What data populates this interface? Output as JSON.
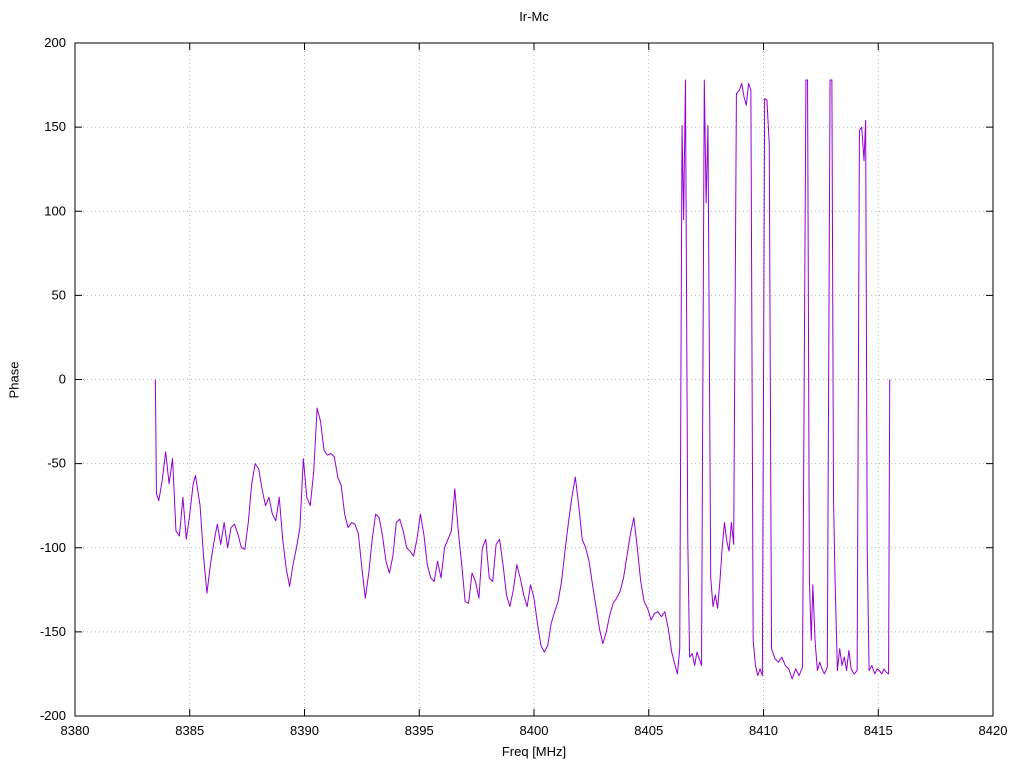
{
  "chart": {
    "title": "Ir-Mc",
    "xlabel": "Freq [MHz]",
    "ylabel": "Phase"
  },
  "chart_data": {
    "type": "line",
    "title": "Ir-Mc",
    "xlabel": "Freq [MHz]",
    "ylabel": "Phase",
    "xlim": [
      8380,
      8420
    ],
    "ylim": [
      -200,
      200
    ],
    "xticks": [
      8380,
      8385,
      8390,
      8395,
      8400,
      8405,
      8410,
      8415,
      8420
    ],
    "yticks": [
      -200,
      -150,
      -100,
      -50,
      0,
      50,
      100,
      150,
      200
    ],
    "grid": true,
    "legend": "none",
    "line_color": "#9400d3",
    "grid_color": "#b8b8b8",
    "background": "#ffffff",
    "series": [
      {
        "name": "Phase",
        "points": [
          [
            8383.5,
            0
          ],
          [
            8383.55,
            -68
          ],
          [
            8383.65,
            -72
          ],
          [
            8383.8,
            -60
          ],
          [
            8383.95,
            -43
          ],
          [
            8384.1,
            -62
          ],
          [
            8384.25,
            -47
          ],
          [
            8384.4,
            -90
          ],
          [
            8384.55,
            -93
          ],
          [
            8384.7,
            -70
          ],
          [
            8384.85,
            -95
          ],
          [
            8385.0,
            -80
          ],
          [
            8385.15,
            -62
          ],
          [
            8385.25,
            -57
          ],
          [
            8385.45,
            -75
          ],
          [
            8385.6,
            -105
          ],
          [
            8385.75,
            -127
          ],
          [
            8385.9,
            -110
          ],
          [
            8386.05,
            -97
          ],
          [
            8386.2,
            -86
          ],
          [
            8386.35,
            -98
          ],
          [
            8386.5,
            -85
          ],
          [
            8386.65,
            -100
          ],
          [
            8386.8,
            -88
          ],
          [
            8386.95,
            -86
          ],
          [
            8387.1,
            -92
          ],
          [
            8387.25,
            -100
          ],
          [
            8387.4,
            -101
          ],
          [
            8387.55,
            -85
          ],
          [
            8387.7,
            -62
          ],
          [
            8387.85,
            -50
          ],
          [
            8388.0,
            -53
          ],
          [
            8388.15,
            -65
          ],
          [
            8388.3,
            -75
          ],
          [
            8388.45,
            -70
          ],
          [
            8388.6,
            -80
          ],
          [
            8388.75,
            -84
          ],
          [
            8388.9,
            -70
          ],
          [
            8389.05,
            -95
          ],
          [
            8389.2,
            -112
          ],
          [
            8389.35,
            -123
          ],
          [
            8389.5,
            -110
          ],
          [
            8389.65,
            -100
          ],
          [
            8389.8,
            -88
          ],
          [
            8389.95,
            -47
          ],
          [
            8390.1,
            -70
          ],
          [
            8390.25,
            -75
          ],
          [
            8390.4,
            -55
          ],
          [
            8390.55,
            -17
          ],
          [
            8390.7,
            -25
          ],
          [
            8390.85,
            -42
          ],
          [
            8391.0,
            -45
          ],
          [
            8391.15,
            -44
          ],
          [
            8391.3,
            -46
          ],
          [
            8391.45,
            -58
          ],
          [
            8391.6,
            -63
          ],
          [
            8391.75,
            -80
          ],
          [
            8391.9,
            -88
          ],
          [
            8392.05,
            -85
          ],
          [
            8392.2,
            -86
          ],
          [
            8392.35,
            -92
          ],
          [
            8392.5,
            -112
          ],
          [
            8392.65,
            -130
          ],
          [
            8392.8,
            -115
          ],
          [
            8392.95,
            -95
          ],
          [
            8393.1,
            -80
          ],
          [
            8393.25,
            -82
          ],
          [
            8393.4,
            -93
          ],
          [
            8393.55,
            -108
          ],
          [
            8393.7,
            -115
          ],
          [
            8393.85,
            -105
          ],
          [
            8394.0,
            -85
          ],
          [
            8394.15,
            -83
          ],
          [
            8394.3,
            -90
          ],
          [
            8394.45,
            -100
          ],
          [
            8394.6,
            -102
          ],
          [
            8394.75,
            -105
          ],
          [
            8394.9,
            -95
          ],
          [
            8395.05,
            -80
          ],
          [
            8395.2,
            -92
          ],
          [
            8395.35,
            -110
          ],
          [
            8395.5,
            -118
          ],
          [
            8395.65,
            -120
          ],
          [
            8395.8,
            -108
          ],
          [
            8395.95,
            -118
          ],
          [
            8396.1,
            -100
          ],
          [
            8396.25,
            -95
          ],
          [
            8396.4,
            -90
          ],
          [
            8396.55,
            -65
          ],
          [
            8396.7,
            -90
          ],
          [
            8396.85,
            -110
          ],
          [
            8397.0,
            -132
          ],
          [
            8397.15,
            -133
          ],
          [
            8397.3,
            -115
          ],
          [
            8397.45,
            -120
          ],
          [
            8397.6,
            -130
          ],
          [
            8397.75,
            -100
          ],
          [
            8397.9,
            -95
          ],
          [
            8398.05,
            -118
          ],
          [
            8398.2,
            -120
          ],
          [
            8398.35,
            -98
          ],
          [
            8398.5,
            -95
          ],
          [
            8398.65,
            -110
          ],
          [
            8398.8,
            -128
          ],
          [
            8398.95,
            -135
          ],
          [
            8399.1,
            -125
          ],
          [
            8399.25,
            -110
          ],
          [
            8399.4,
            -118
          ],
          [
            8399.55,
            -128
          ],
          [
            8399.7,
            -135
          ],
          [
            8399.85,
            -122
          ],
          [
            8400.0,
            -130
          ],
          [
            8400.15,
            -145
          ],
          [
            8400.3,
            -158
          ],
          [
            8400.45,
            -162
          ],
          [
            8400.6,
            -158
          ],
          [
            8400.75,
            -145
          ],
          [
            8400.9,
            -138
          ],
          [
            8401.05,
            -132
          ],
          [
            8401.2,
            -120
          ],
          [
            8401.35,
            -102
          ],
          [
            8401.5,
            -85
          ],
          [
            8401.65,
            -70
          ],
          [
            8401.8,
            -58
          ],
          [
            8401.95,
            -75
          ],
          [
            8402.1,
            -95
          ],
          [
            8402.25,
            -100
          ],
          [
            8402.4,
            -108
          ],
          [
            8402.55,
            -122
          ],
          [
            8402.7,
            -135
          ],
          [
            8402.85,
            -148
          ],
          [
            8403.0,
            -157
          ],
          [
            8403.15,
            -150
          ],
          [
            8403.3,
            -140
          ],
          [
            8403.45,
            -133
          ],
          [
            8403.6,
            -130
          ],
          [
            8403.75,
            -126
          ],
          [
            8403.9,
            -118
          ],
          [
            8404.05,
            -105
          ],
          [
            8404.2,
            -92
          ],
          [
            8404.35,
            -82
          ],
          [
            8404.5,
            -100
          ],
          [
            8404.65,
            -120
          ],
          [
            8404.8,
            -132
          ],
          [
            8404.95,
            -136
          ],
          [
            8405.1,
            -143
          ],
          [
            8405.25,
            -139
          ],
          [
            8405.4,
            -138
          ],
          [
            8405.55,
            -141
          ],
          [
            8405.7,
            -138
          ],
          [
            8405.85,
            -148
          ],
          [
            8406.0,
            -162
          ],
          [
            8406.15,
            -170
          ],
          [
            8406.25,
            -175
          ],
          [
            8406.35,
            -160
          ],
          [
            8406.45,
            151
          ],
          [
            8406.52,
            95
          ],
          [
            8406.6,
            178
          ],
          [
            8406.7,
            -95
          ],
          [
            8406.78,
            -165
          ],
          [
            8406.9,
            -163
          ],
          [
            8407.0,
            -170
          ],
          [
            8407.1,
            -162
          ],
          [
            8407.2,
            -166
          ],
          [
            8407.3,
            -170
          ],
          [
            8407.42,
            178
          ],
          [
            8407.5,
            105
          ],
          [
            8407.58,
            151
          ],
          [
            8407.7,
            -118
          ],
          [
            8407.8,
            -135
          ],
          [
            8407.9,
            -128
          ],
          [
            8408.0,
            -136
          ],
          [
            8408.1,
            -120
          ],
          [
            8408.2,
            -100
          ],
          [
            8408.3,
            -85
          ],
          [
            8408.4,
            -96
          ],
          [
            8408.5,
            -102
          ],
          [
            8408.6,
            -85
          ],
          [
            8408.7,
            -98
          ],
          [
            8408.82,
            170
          ],
          [
            8408.95,
            172
          ],
          [
            8409.05,
            176
          ],
          [
            8409.15,
            168
          ],
          [
            8409.25,
            163
          ],
          [
            8409.35,
            176
          ],
          [
            8409.45,
            172
          ],
          [
            8409.55,
            -155
          ],
          [
            8409.65,
            -170
          ],
          [
            8409.75,
            -176
          ],
          [
            8409.85,
            -172
          ],
          [
            8409.95,
            -176
          ],
          [
            8410.05,
            167
          ],
          [
            8410.15,
            166
          ],
          [
            8410.25,
            140
          ],
          [
            8410.35,
            -160
          ],
          [
            8410.5,
            -166
          ],
          [
            8410.65,
            -168
          ],
          [
            8410.8,
            -165
          ],
          [
            8410.95,
            -170
          ],
          [
            8411.1,
            -172
          ],
          [
            8411.25,
            -178
          ],
          [
            8411.4,
            -172
          ],
          [
            8411.55,
            -176
          ],
          [
            8411.7,
            -171
          ],
          [
            8411.85,
            178
          ],
          [
            8411.92,
            178
          ],
          [
            8412.0,
            -120
          ],
          [
            8412.08,
            -155
          ],
          [
            8412.15,
            -122
          ],
          [
            8412.25,
            -156
          ],
          [
            8412.35,
            -173
          ],
          [
            8412.45,
            -168
          ],
          [
            8412.55,
            -172
          ],
          [
            8412.65,
            -175
          ],
          [
            8412.78,
            -171
          ],
          [
            8412.9,
            178
          ],
          [
            8412.98,
            178
          ],
          [
            8413.05,
            -70
          ],
          [
            8413.12,
            -120
          ],
          [
            8413.22,
            -173
          ],
          [
            8413.32,
            -160
          ],
          [
            8413.42,
            -170
          ],
          [
            8413.52,
            -165
          ],
          [
            8413.62,
            -173
          ],
          [
            8413.72,
            -161
          ],
          [
            8413.82,
            -172
          ],
          [
            8413.95,
            -175
          ],
          [
            8414.08,
            -173
          ],
          [
            8414.18,
            148
          ],
          [
            8414.28,
            150
          ],
          [
            8414.38,
            130
          ],
          [
            8414.45,
            154
          ],
          [
            8414.52,
            -100
          ],
          [
            8414.6,
            -173
          ],
          [
            8414.72,
            -170
          ],
          [
            8414.85,
            -175
          ],
          [
            8414.95,
            -172
          ],
          [
            8415.05,
            -173
          ],
          [
            8415.15,
            -175
          ],
          [
            8415.25,
            -172
          ],
          [
            8415.35,
            -174
          ],
          [
            8415.45,
            -175
          ],
          [
            8415.5,
            0
          ]
        ]
      }
    ]
  }
}
